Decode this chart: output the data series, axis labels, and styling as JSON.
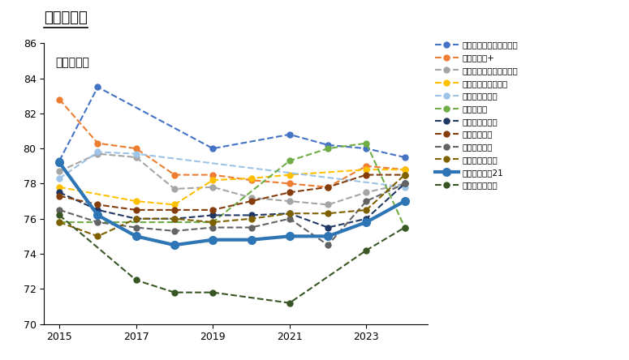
{
  "title": "マンション",
  "ylabel": "顧客満足度",
  "ylim": [
    70,
    86
  ],
  "yticks": [
    70,
    72,
    74,
    76,
    78,
    80,
    82,
    84,
    86
  ],
  "years": [
    2015,
    2016,
    2017,
    2018,
    2019,
    2020,
    2021,
    2022,
    2023,
    2024
  ],
  "series": [
    {
      "name": "住友林業ホームサービス",
      "color": "#4472C4",
      "linestyle": "--",
      "linewidth": 1.5,
      "marker": "o",
      "markersize": 5,
      "values": [
        79.3,
        83.5,
        null,
        null,
        80.0,
        null,
        80.8,
        80.2,
        80.0,
        79.5
      ]
    },
    {
      "name": "野村の付介+",
      "color": "#ED7D31",
      "linestyle": "--",
      "linewidth": 1.5,
      "marker": "o",
      "markersize": 5,
      "values": [
        82.8,
        80.3,
        80.0,
        78.5,
        78.5,
        78.2,
        78.0,
        77.8,
        79.0,
        78.8
      ]
    },
    {
      "name": "三井住友トラスト不動産",
      "color": "#A5A5A5",
      "linestyle": "--",
      "linewidth": 1.5,
      "marker": "o",
      "markersize": 5,
      "values": [
        78.7,
        79.7,
        79.5,
        77.7,
        77.8,
        77.2,
        77.0,
        76.8,
        77.5,
        78.0
      ]
    },
    {
      "name": "大成有楽不動産販売",
      "color": "#FFC000",
      "linestyle": "--",
      "linewidth": 1.5,
      "marker": "o",
      "markersize": 5,
      "values": [
        77.8,
        null,
        77.0,
        76.8,
        78.2,
        78.3,
        78.5,
        null,
        78.8,
        78.8
      ]
    },
    {
      "name": "大京穴吹不動産",
      "color": "#9DC3E6",
      "linestyle": "--",
      "linewidth": 1.5,
      "marker": "o",
      "markersize": 5,
      "values": [
        78.3,
        79.8,
        79.7,
        null,
        null,
        null,
        null,
        null,
        null,
        77.8
      ]
    },
    {
      "name": "近鉄の付介",
      "color": "#70AD47",
      "linestyle": "--",
      "linewidth": 1.5,
      "marker": "o",
      "markersize": 5,
      "values": [
        75.8,
        null,
        null,
        null,
        75.8,
        null,
        79.3,
        80.0,
        80.3,
        75.5
      ]
    },
    {
      "name": "三井のリハウス",
      "color": "#203864",
      "linestyle": "--",
      "linewidth": 1.5,
      "marker": "o",
      "markersize": 5,
      "values": [
        77.5,
        76.5,
        76.0,
        76.0,
        76.2,
        76.2,
        76.3,
        75.5,
        76.0,
        78.0
      ]
    },
    {
      "name": "東急リバブル",
      "color": "#843C0C",
      "linestyle": "--",
      "linewidth": 1.5,
      "marker": "o",
      "markersize": 5,
      "values": [
        77.3,
        76.8,
        76.5,
        76.5,
        76.5,
        77.0,
        77.5,
        77.8,
        78.5,
        78.5
      ]
    },
    {
      "name": "長谷工の付介",
      "color": "#636363",
      "linestyle": "--",
      "linewidth": 1.5,
      "marker": "o",
      "markersize": 5,
      "values": [
        76.5,
        75.8,
        75.5,
        75.3,
        75.5,
        75.5,
        76.0,
        74.5,
        77.0,
        78.0
      ]
    },
    {
      "name": "住友不動産販売",
      "color": "#7F6000",
      "linestyle": "--",
      "linewidth": 1.5,
      "marker": "o",
      "markersize": 5,
      "values": [
        75.8,
        75.0,
        76.0,
        76.0,
        75.8,
        76.0,
        76.3,
        76.3,
        76.5,
        78.5
      ]
    },
    {
      "name": "センチュリー21",
      "color": "#2E75B6",
      "linestyle": "-",
      "linewidth": 3.0,
      "marker": "o",
      "markersize": 7,
      "values": [
        79.2,
        76.2,
        75.0,
        74.5,
        74.8,
        74.8,
        75.0,
        75.0,
        75.8,
        77.0
      ]
    },
    {
      "name": "福屋不動産販売",
      "color": "#375623",
      "linestyle": "--",
      "linewidth": 1.5,
      "marker": "o",
      "markersize": 5,
      "values": [
        76.2,
        null,
        72.5,
        71.8,
        71.8,
        null,
        71.2,
        null,
        74.2,
        75.5
      ]
    }
  ],
  "legend_fontsize": 7.5,
  "axis_fontsize": 9,
  "title_fontsize": 13
}
